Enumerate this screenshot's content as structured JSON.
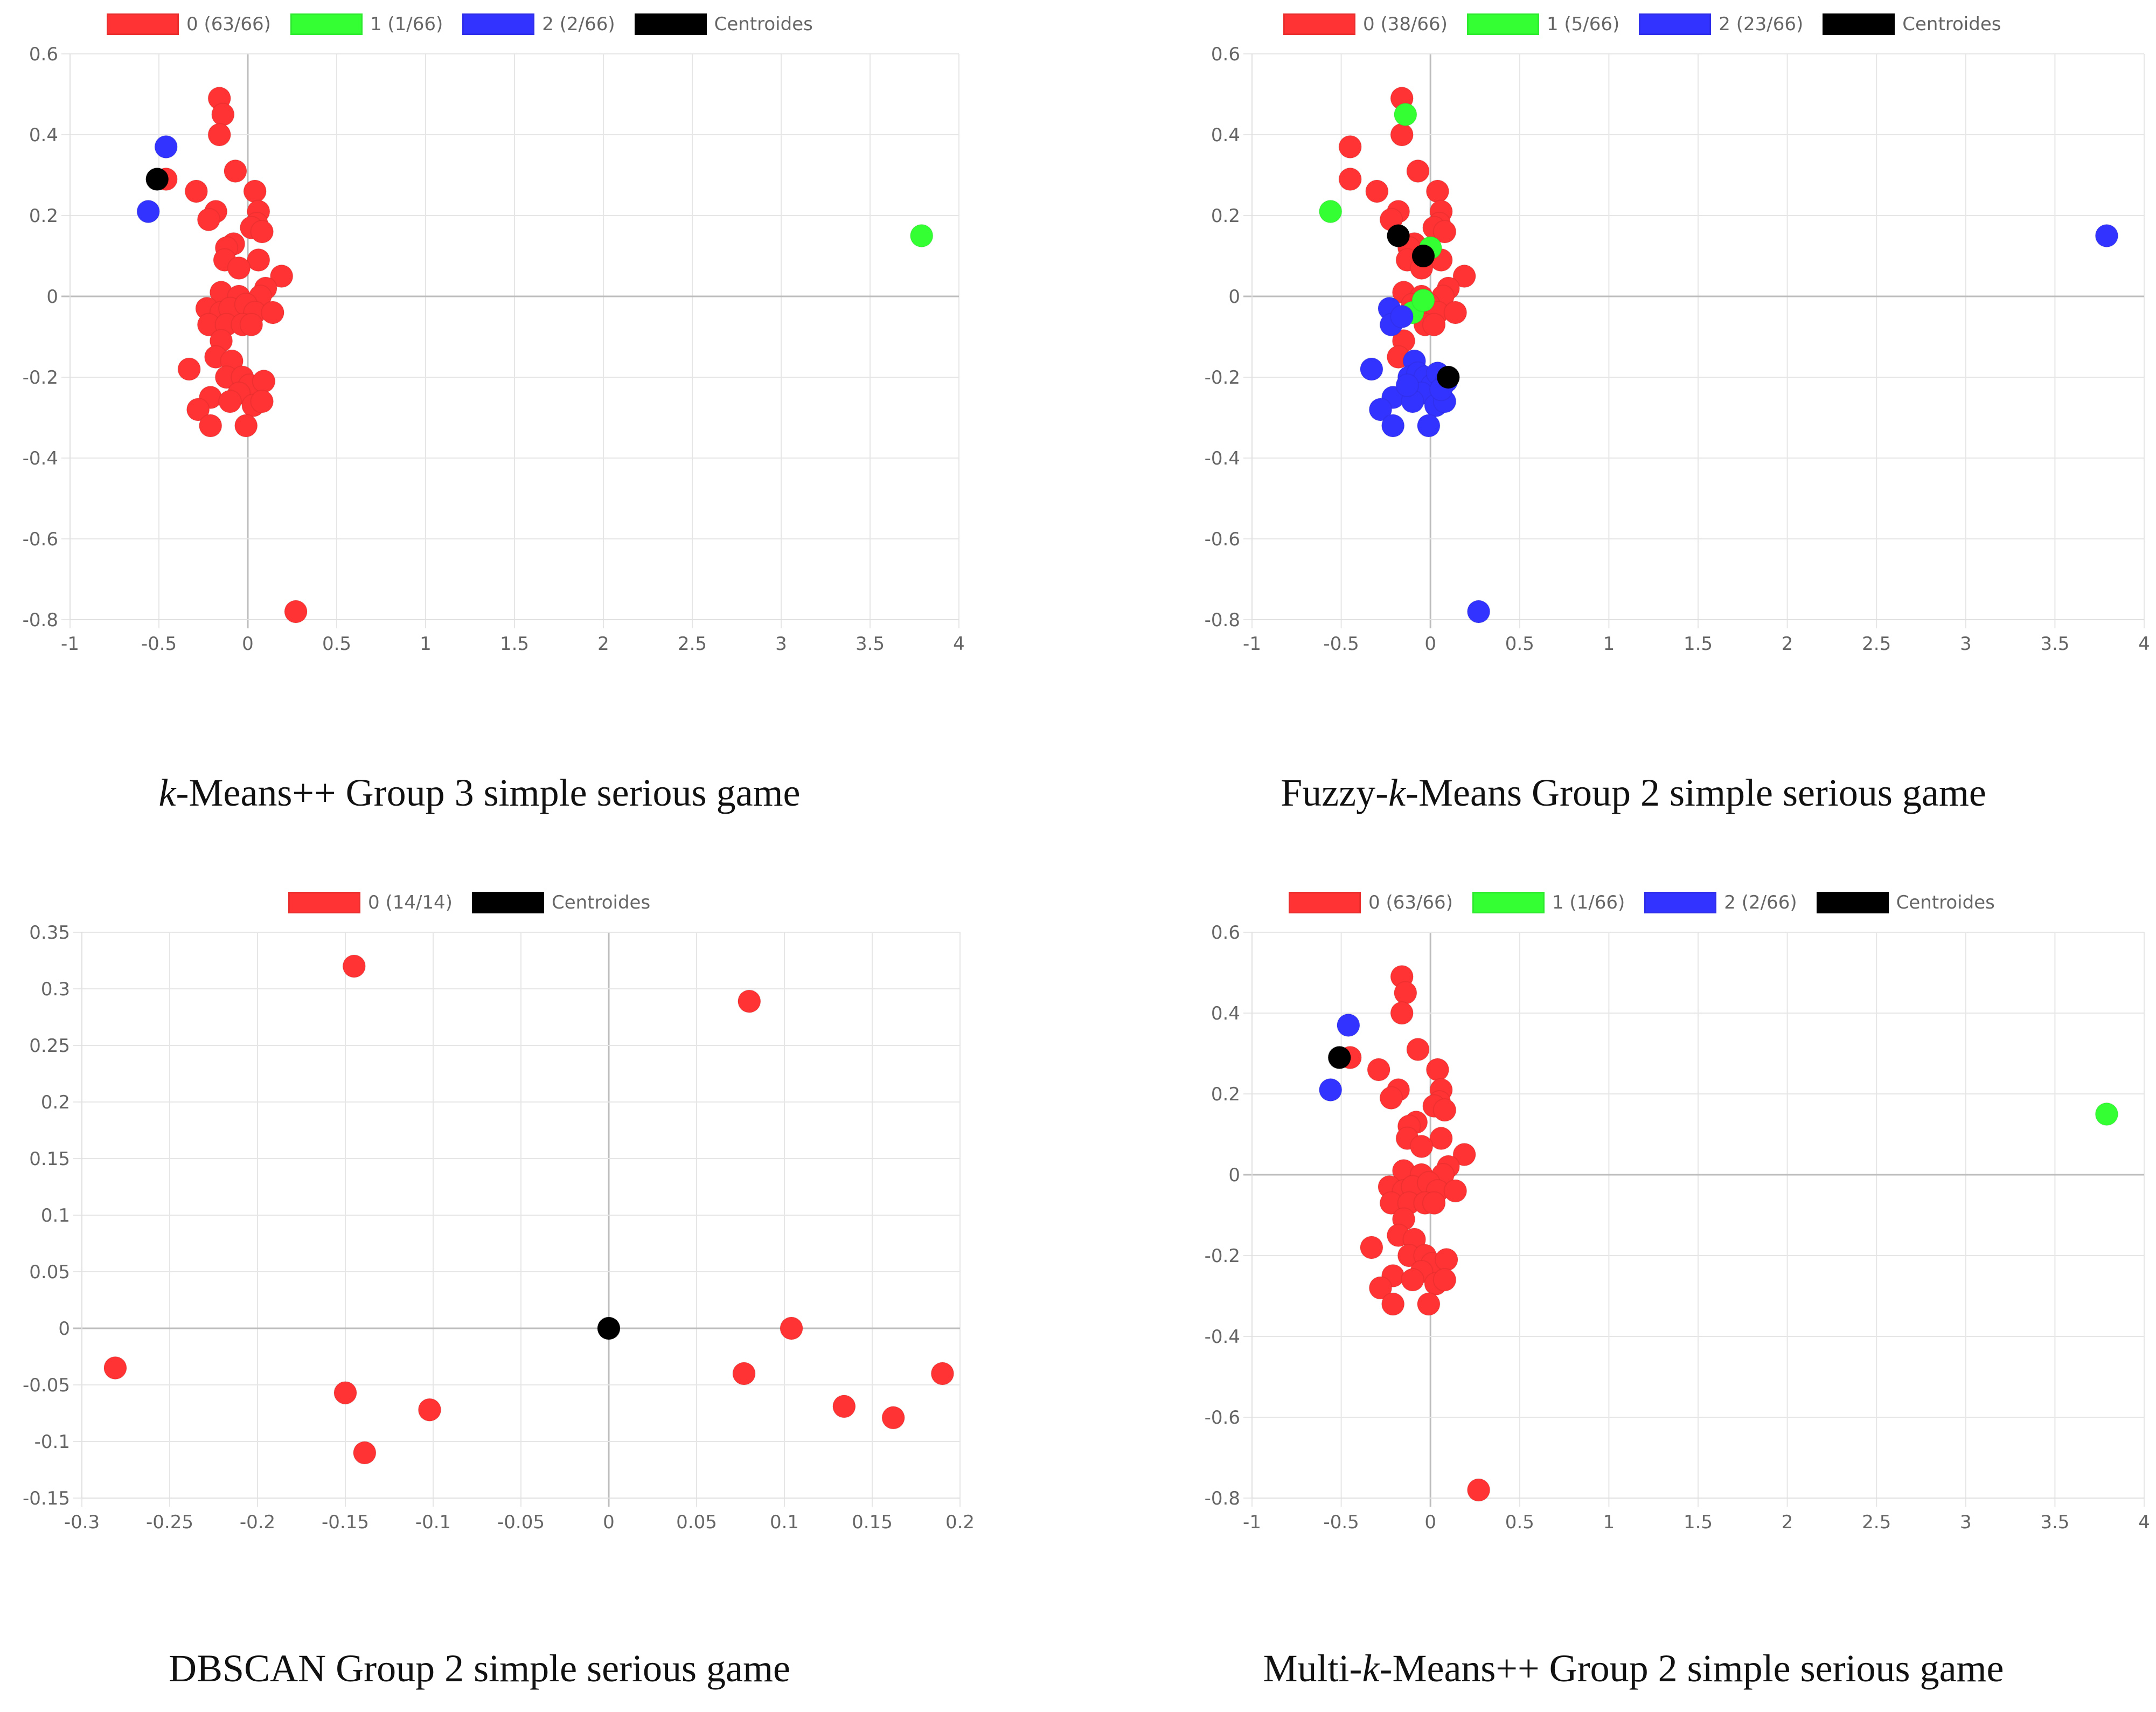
{
  "chart_data": [
    {
      "type": "scatter",
      "caption": {
        "italic_prefix": "",
        "italic": "k",
        "rest": "-Means++ Group 3 simple serious game"
      },
      "xlim": [
        -1,
        4
      ],
      "ylim": [
        -0.8,
        0.6
      ],
      "xticks": [
        -1,
        -0.5,
        0,
        0.5,
        1,
        1.5,
        2,
        2.5,
        3,
        3.5,
        4
      ],
      "yticks": [
        -0.8,
        -0.6,
        -0.4,
        -0.2,
        0,
        0.2,
        0.4,
        0.6
      ],
      "xtick_labels": [
        "-1",
        "-0.5",
        "0",
        "0.5",
        "1",
        "1.5",
        "2",
        "2.5",
        "3",
        "3.5",
        "4"
      ],
      "ytick_labels": [
        "-0.8",
        "-0.6",
        "-0.4",
        "-0.2",
        "0",
        "0.2",
        "0.4",
        "0.6"
      ],
      "series": [
        {
          "name": "0 (63/66)",
          "color": "#ff3333",
          "points": [
            [
              -0.16,
              0.49
            ],
            [
              -0.14,
              0.45
            ],
            [
              -0.16,
              0.4
            ],
            [
              -0.07,
              0.31
            ],
            [
              0.04,
              0.26
            ],
            [
              -0.29,
              0.26
            ],
            [
              -0.46,
              0.29
            ],
            [
              -0.18,
              0.21
            ],
            [
              -0.22,
              0.19
            ],
            [
              0.06,
              0.21
            ],
            [
              0.05,
              0.18
            ],
            [
              0.02,
              0.17
            ],
            [
              0.08,
              0.16
            ],
            [
              -0.08,
              0.13
            ],
            [
              -0.12,
              0.12
            ],
            [
              -0.13,
              0.09
            ],
            [
              0.06,
              0.09
            ],
            [
              -0.05,
              0.07
            ],
            [
              0.19,
              0.05
            ],
            [
              -0.15,
              0.01
            ],
            [
              -0.05,
              0.0
            ],
            [
              0.1,
              0.02
            ],
            [
              0.07,
              0.0
            ],
            [
              -0.23,
              -0.03
            ],
            [
              -0.15,
              -0.04
            ],
            [
              -0.1,
              -0.03
            ],
            [
              -0.01,
              -0.02
            ],
            [
              0.04,
              -0.04
            ],
            [
              0.14,
              -0.04
            ],
            [
              -0.22,
              -0.07
            ],
            [
              -0.12,
              -0.07
            ],
            [
              -0.03,
              -0.07
            ],
            [
              0.02,
              -0.07
            ],
            [
              -0.15,
              -0.11
            ],
            [
              -0.18,
              -0.15
            ],
            [
              -0.09,
              -0.16
            ],
            [
              -0.33,
              -0.18
            ],
            [
              -0.12,
              -0.2
            ],
            [
              -0.03,
              -0.2
            ],
            [
              0.01,
              -0.22
            ],
            [
              0.09,
              -0.21
            ],
            [
              -0.05,
              -0.24
            ],
            [
              -0.21,
              -0.25
            ],
            [
              -0.1,
              -0.26
            ],
            [
              0.03,
              -0.27
            ],
            [
              0.08,
              -0.26
            ],
            [
              -0.28,
              -0.28
            ],
            [
              -0.21,
              -0.32
            ],
            [
              -0.01,
              -0.32
            ],
            [
              0.27,
              -0.78
            ]
          ]
        },
        {
          "name": "1 (1/66)",
          "color": "#33ff33",
          "points": [
            [
              3.79,
              0.15
            ]
          ]
        },
        {
          "name": "2 (2/66)",
          "color": "#3333ff",
          "points": [
            [
              -0.46,
              0.37
            ],
            [
              -0.56,
              0.21
            ]
          ]
        },
        {
          "name": "Centroides",
          "color": "#000000",
          "points": [
            [
              -0.51,
              0.29
            ]
          ]
        }
      ]
    },
    {
      "type": "scatter",
      "caption": {
        "italic_prefix": "Fuzzy-",
        "italic": "k",
        "rest": "-Means Group 2 simple serious game"
      },
      "xlim": [
        -1,
        4
      ],
      "ylim": [
        -0.8,
        0.6
      ],
      "xticks": [
        -1,
        -0.5,
        0,
        0.5,
        1,
        1.5,
        2,
        2.5,
        3,
        3.5,
        4
      ],
      "yticks": [
        -0.8,
        -0.6,
        -0.4,
        -0.2,
        0,
        0.2,
        0.4,
        0.6
      ],
      "xtick_labels": [
        "-1",
        "-0.5",
        "0",
        "0.5",
        "1",
        "1.5",
        "2",
        "2.5",
        "3",
        "3.5",
        "4"
      ],
      "ytick_labels": [
        "-0.8",
        "-0.6",
        "-0.4",
        "-0.2",
        "0",
        "0.2",
        "0.4",
        "0.6"
      ],
      "series": [
        {
          "name": "0 (38/66)",
          "color": "#ff3333",
          "points": [
            [
              -0.16,
              0.49
            ],
            [
              -0.16,
              0.4
            ],
            [
              -0.45,
              0.37
            ],
            [
              -0.45,
              0.29
            ],
            [
              -0.3,
              0.26
            ],
            [
              -0.07,
              0.31
            ],
            [
              0.04,
              0.26
            ],
            [
              -0.18,
              0.21
            ],
            [
              -0.22,
              0.19
            ],
            [
              0.06,
              0.21
            ],
            [
              0.05,
              0.18
            ],
            [
              0.02,
              0.17
            ],
            [
              0.08,
              0.16
            ],
            [
              -0.09,
              0.13
            ],
            [
              -0.12,
              0.12
            ],
            [
              -0.13,
              0.09
            ],
            [
              0.06,
              0.09
            ],
            [
              -0.05,
              0.07
            ],
            [
              0.19,
              0.05
            ],
            [
              -0.15,
              0.01
            ],
            [
              -0.05,
              0.0
            ],
            [
              0.1,
              0.02
            ],
            [
              0.07,
              0.0
            ],
            [
              -0.1,
              -0.02
            ],
            [
              -0.01,
              -0.02
            ],
            [
              0.04,
              -0.04
            ],
            [
              0.14,
              -0.04
            ],
            [
              -0.03,
              -0.07
            ],
            [
              0.02,
              -0.07
            ],
            [
              -0.15,
              -0.11
            ],
            [
              -0.18,
              -0.15
            ]
          ]
        },
        {
          "name": "1 (5/66)",
          "color": "#33ff33",
          "points": [
            [
              -0.14,
              0.45
            ],
            [
              -0.56,
              0.21
            ],
            [
              0.0,
              0.12
            ],
            [
              -0.1,
              -0.04
            ],
            [
              -0.04,
              -0.01
            ]
          ]
        },
        {
          "name": "2 (23/66)",
          "color": "#3333ff",
          "points": [
            [
              3.79,
              0.15
            ],
            [
              -0.23,
              -0.03
            ],
            [
              -0.22,
              -0.07
            ],
            [
              -0.16,
              -0.05
            ],
            [
              -0.33,
              -0.18
            ],
            [
              -0.09,
              -0.16
            ],
            [
              -0.12,
              -0.2
            ],
            [
              -0.07,
              -0.19
            ],
            [
              -0.03,
              -0.2
            ],
            [
              0.01,
              -0.22
            ],
            [
              0.04,
              -0.19
            ],
            [
              0.09,
              -0.21
            ],
            [
              -0.05,
              -0.24
            ],
            [
              -0.21,
              -0.25
            ],
            [
              -0.1,
              -0.26
            ],
            [
              0.03,
              -0.27
            ],
            [
              0.08,
              -0.26
            ],
            [
              -0.28,
              -0.28
            ],
            [
              -0.21,
              -0.32
            ],
            [
              -0.01,
              -0.32
            ],
            [
              -0.13,
              -0.22
            ],
            [
              0.06,
              -0.23
            ],
            [
              0.27,
              -0.78
            ]
          ]
        },
        {
          "name": "Centroides",
          "color": "#000000",
          "points": [
            [
              -0.18,
              0.15
            ],
            [
              -0.04,
              0.1
            ],
            [
              0.1,
              -0.2
            ]
          ]
        }
      ]
    },
    {
      "type": "scatter",
      "caption": {
        "italic_prefix": "",
        "italic": "",
        "rest": "DBSCAN Group 2 simple serious game"
      },
      "xlim": [
        -0.3,
        0.2
      ],
      "ylim": [
        -0.15,
        0.35
      ],
      "xticks": [
        -0.3,
        -0.25,
        -0.2,
        -0.15,
        -0.1,
        -0.05,
        0,
        0.05,
        0.1,
        0.15,
        0.2
      ],
      "yticks": [
        -0.15,
        -0.1,
        -0.05,
        0,
        0.05,
        0.1,
        0.15,
        0.2,
        0.25,
        0.3,
        0.35
      ],
      "xtick_labels": [
        "-0.3",
        "-0.25",
        "-0.2",
        "-0.15",
        "-0.1",
        "-0.05",
        "0",
        "0.05",
        "0.1",
        "0.15",
        "0.2"
      ],
      "ytick_labels": [
        "-0.15",
        "-0.1",
        "-0.05",
        "0",
        "0.05",
        "0.1",
        "0.15",
        "0.2",
        "0.25",
        "0.3",
        "0.35"
      ],
      "series": [
        {
          "name": "0 (14/14)",
          "color": "#ff3333",
          "points": [
            [
              -0.145,
              0.32
            ],
            [
              0.08,
              0.289
            ],
            [
              -0.281,
              -0.035
            ],
            [
              -0.15,
              -0.057
            ],
            [
              -0.102,
              -0.072
            ],
            [
              -0.139,
              -0.11
            ],
            [
              0.077,
              -0.04
            ],
            [
              0.104,
              0.0
            ],
            [
              0.134,
              -0.069
            ],
            [
              0.162,
              -0.079
            ],
            [
              0.19,
              -0.04
            ]
          ]
        },
        {
          "name": "Centroides",
          "color": "#000000",
          "points": [
            [
              0.0,
              0.0
            ]
          ]
        }
      ]
    },
    {
      "type": "scatter",
      "caption": {
        "italic_prefix": "Multi-",
        "italic": "k",
        "rest": "-Means++ Group 2 simple serious game"
      },
      "xlim": [
        -1,
        4
      ],
      "ylim": [
        -0.8,
        0.6
      ],
      "xticks": [
        -1,
        -0.5,
        0,
        0.5,
        1,
        1.5,
        2,
        2.5,
        3,
        3.5,
        4
      ],
      "yticks": [
        -0.8,
        -0.6,
        -0.4,
        -0.2,
        0,
        0.2,
        0.4,
        0.6
      ],
      "xtick_labels": [
        "-1",
        "-0.5",
        "0",
        "0.5",
        "1",
        "1.5",
        "2",
        "2.5",
        "3",
        "3.5",
        "4"
      ],
      "ytick_labels": [
        "-0.8",
        "-0.6",
        "-0.4",
        "-0.2",
        "0",
        "0.2",
        "0.4",
        "0.6"
      ],
      "series": [
        {
          "name": "0 (63/66)",
          "color": "#ff3333",
          "points": [
            [
              -0.16,
              0.49
            ],
            [
              -0.14,
              0.45
            ],
            [
              -0.16,
              0.4
            ],
            [
              -0.07,
              0.31
            ],
            [
              0.04,
              0.26
            ],
            [
              -0.29,
              0.26
            ],
            [
              -0.45,
              0.29
            ],
            [
              -0.18,
              0.21
            ],
            [
              -0.22,
              0.19
            ],
            [
              0.06,
              0.21
            ],
            [
              0.05,
              0.18
            ],
            [
              0.02,
              0.17
            ],
            [
              0.08,
              0.16
            ],
            [
              -0.08,
              0.13
            ],
            [
              -0.12,
              0.12
            ],
            [
              -0.13,
              0.09
            ],
            [
              0.06,
              0.09
            ],
            [
              -0.05,
              0.07
            ],
            [
              0.19,
              0.05
            ],
            [
              -0.15,
              0.01
            ],
            [
              -0.05,
              0.0
            ],
            [
              0.1,
              0.02
            ],
            [
              0.07,
              0.0
            ],
            [
              -0.23,
              -0.03
            ],
            [
              -0.15,
              -0.04
            ],
            [
              -0.1,
              -0.03
            ],
            [
              -0.01,
              -0.02
            ],
            [
              0.04,
              -0.04
            ],
            [
              0.14,
              -0.04
            ],
            [
              -0.22,
              -0.07
            ],
            [
              -0.12,
              -0.07
            ],
            [
              -0.03,
              -0.07
            ],
            [
              0.02,
              -0.07
            ],
            [
              -0.15,
              -0.11
            ],
            [
              -0.18,
              -0.15
            ],
            [
              -0.09,
              -0.16
            ],
            [
              -0.33,
              -0.18
            ],
            [
              -0.12,
              -0.2
            ],
            [
              -0.03,
              -0.2
            ],
            [
              0.01,
              -0.22
            ],
            [
              0.09,
              -0.21
            ],
            [
              -0.05,
              -0.24
            ],
            [
              -0.21,
              -0.25
            ],
            [
              -0.1,
              -0.26
            ],
            [
              0.03,
              -0.27
            ],
            [
              0.08,
              -0.26
            ],
            [
              -0.28,
              -0.28
            ],
            [
              -0.21,
              -0.32
            ],
            [
              -0.01,
              -0.32
            ],
            [
              0.27,
              -0.78
            ]
          ]
        },
        {
          "name": "1 (1/66)",
          "color": "#33ff33",
          "points": [
            [
              3.79,
              0.15
            ]
          ]
        },
        {
          "name": "2 (2/66)",
          "color": "#3333ff",
          "points": [
            [
              -0.46,
              0.37
            ],
            [
              -0.56,
              0.21
            ]
          ]
        },
        {
          "name": "Centroides",
          "color": "#000000",
          "points": [
            [
              -0.51,
              0.29
            ]
          ]
        }
      ]
    }
  ]
}
